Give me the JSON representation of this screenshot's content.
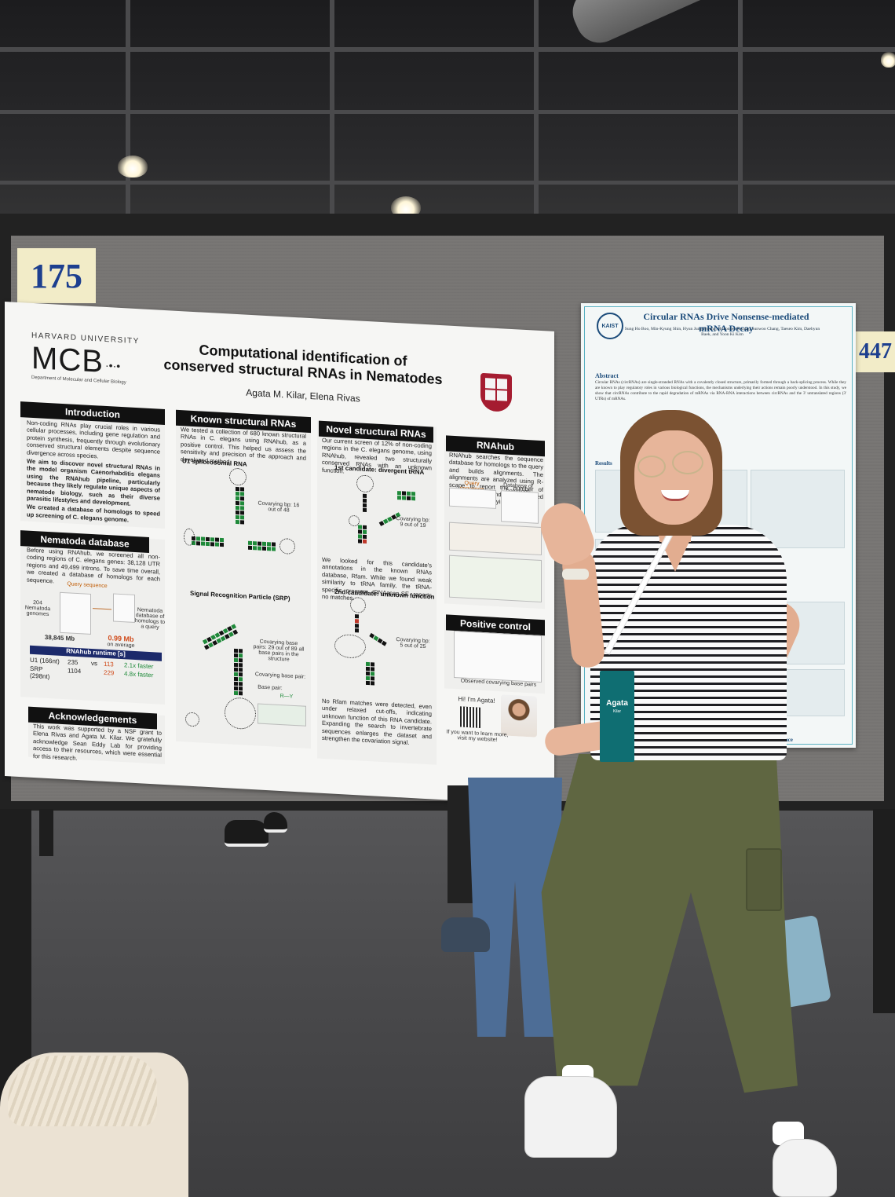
{
  "board": {
    "left_number": "175",
    "right_number": "447"
  },
  "main_poster": {
    "university": "HARVARD UNIVERSITY",
    "logo_text": "MCB",
    "department": "Department of Molecular and Cellular Biology",
    "title_line1": "Computational identification of",
    "title_line2": "conserved structural RNAs in Nematodes",
    "authors": "Agata M. Kilar, Elena Rivas",
    "introduction": {
      "heading": "Introduction",
      "p1": "Non-coding RNAs play crucial roles in various cellular processes, including gene regulation and protein synthesis, frequently through evolutionary conserved structural elements despite sequence divergence across species.",
      "p2": "We aim to discover novel structural RNAs in the model organism Caenorhabditis elegans using the RNAhub pipeline, particularly because they likely regulate unique aspects of nematode biology, such as their diverse parasitic lifestyles and development.",
      "p3": "We created a database of homologs to speed up screening of C. elegans genome."
    },
    "nematoda": {
      "heading": "Nematoda database",
      "text": "Before using RNAhub, we screened all non-coding regions of C. elegans genes: 38,128 UTR regions and 49,499 introns. To save time overall, we created a database of homologs for each sequence.",
      "query": "Query sequence",
      "genomes": "204 Nematoda genomes",
      "db_label": "Nematoda database of homologs to a query",
      "size_left": "38,845 Mb",
      "size_right": "0.99 Mb",
      "size_note": "on average",
      "runtime_title": "RNAhub runtime [s]",
      "row1_label": "U1 (166nt)",
      "row1_a": "235",
      "row1_b": "113",
      "row1_speed": "2.1x faster",
      "row2_label": "SRP (298nt)",
      "row2_a": "1104",
      "row2_b": "229",
      "row2_speed": "4.8x faster",
      "vs": "vs"
    },
    "acknowledgements": {
      "heading": "Acknowledgements",
      "text": "This work was supported by a NSF grant to Elena Rivas and Agata M. Kilar. We gratefully acknowledge Sean Eddy Lab for providing access to their resources, which were essential for this research."
    },
    "known": {
      "heading": "Known structural RNAs",
      "text": "We tested a collection of 680 known structural RNAs in C. elegans using RNAhub, as a positive control. This helped us assess the sensitivity and precision of the approach and developed method.",
      "u1": "U1 spliceosomal RNA",
      "u1_bp": "Covarying bp: 16 out of 48",
      "srp": "Signal Recognition Particle (SRP)",
      "srp_bp": "Covarying base pairs: 29 out of 89 all base pairs in the structure",
      "legend": "Covarying base pair:",
      "legend2": "Base pair:",
      "legend3": "R—Y"
    },
    "novel": {
      "heading": "Novel structural RNAs",
      "text": "Our current screen of 12% of non-coding regions in the C. elegans genome, using RNAhub, revealed two structurally conserved RNAs with an unknown function.",
      "c1": "1st candidate: divergent tRNA",
      "c1_bp": "Covarying bp: 9 out of 19",
      "text2": "We looked for this candidate's annotations in the known RNAs database, Rfam. While we found weak similarity to tRNA family, the tRNA-specific program tRNAscan-SE reports no matches.",
      "c2": "2nd candidate: unknown function",
      "c2_bp": "Covarying bp: 5 out of 25",
      "text3": "No Rfam matches were detected, even under relaxed cut-offs, indicating unknown function of this RNA candidate. Expanding the search to invertebrate sequences enlarges the dataset and strengthen the covariation signal."
    },
    "rnahub": {
      "heading": "RNAhub",
      "text": "RNAhub searches the sequence database for homologs to the query and builds alignments. The alignments are analyzed using R-scape to report the number of observed and expected significantly covarying base pairs.",
      "query": "Query sequence",
      "db": "Database of homologs"
    },
    "positive": {
      "heading": "Positive control",
      "xlabel": "Observed covarying base pairs"
    },
    "contact": {
      "hi": "Hi! I'm Agata!",
      "text": "If you want to learn more, visit my website!"
    }
  },
  "right_poster": {
    "logo": "KAIST",
    "title": "Circular RNAs Drive Nonsense-mediated mRNA Decay",
    "authors": "Sung Ho Boo, Min-Kyung Shin, Hyun Jung Hwang, Hyeonseo Hwang, Sunwoo Chang, Taeseo Kim, Daehyun Baek, and Yoon Ki Kim",
    "abstract_heading": "Abstract",
    "abstract": "Circular RNAs (circRNAs) are single-stranded RNAs with a covalently closed structure, primarily formed through a back-splicing process. While they are known to play regulatory roles in various biological functions, the mechanisms underlying their actions remain poorly understood. In this study, we show that circRNAs contribute to the rapid degradation of mRNAs via RNA-RNA interactions between circRNAs and the 3' untranslated regions (3' UTRs) of mRNAs.",
    "results": "Results",
    "reference": "Reference"
  },
  "badge": {
    "name": "Agata",
    "sub": "Kilar"
  },
  "colors": {
    "poster_bg": "#f6f6f4",
    "section_header": "#111111",
    "covary_green": "#1f8a3a",
    "harvard_crimson": "#a51c30",
    "runtime_bar": "#1c2a6b",
    "pants": "#5f6641",
    "board_fabric": "#767472"
  }
}
